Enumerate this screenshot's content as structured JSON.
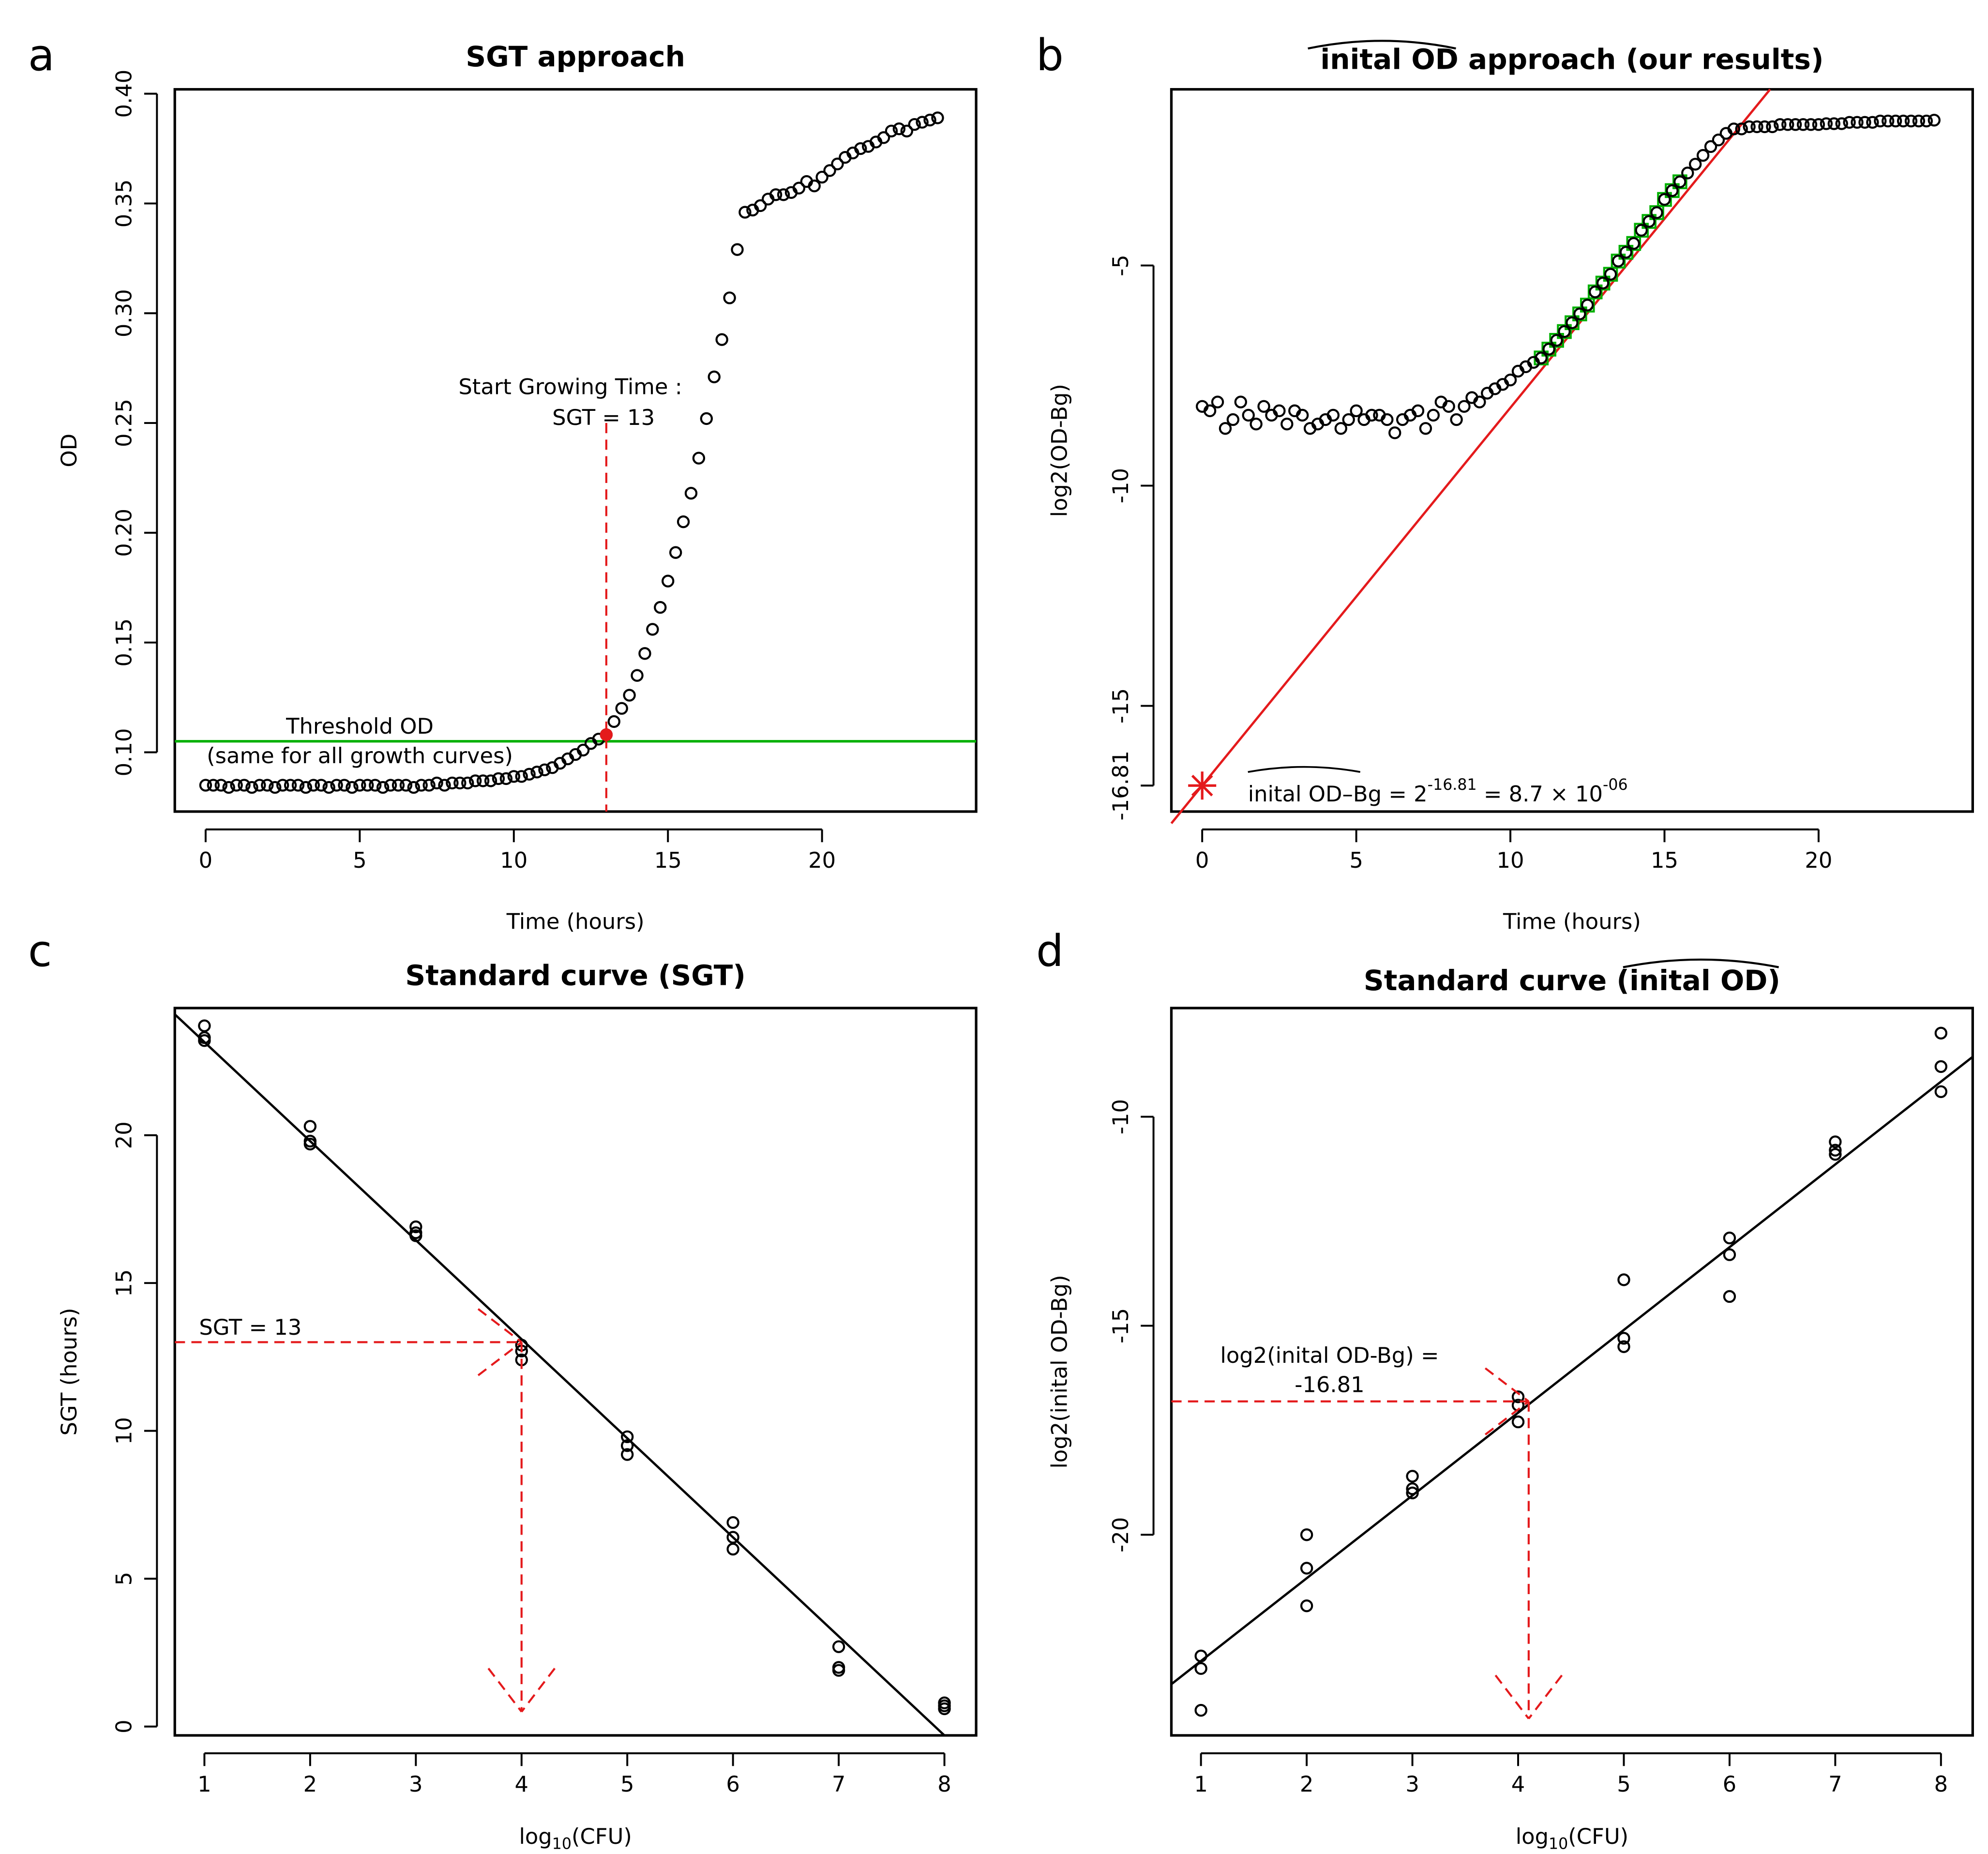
{
  "colors": {
    "axis": "#000000",
    "marker": "#000000",
    "red": "#e41a1c",
    "green": "#00b000",
    "fitline": "#000000"
  },
  "chart_data": [
    {
      "panel": "a",
      "type": "scatter",
      "title": "SGT approach",
      "xlabel": "Time (hours)",
      "ylabel": "OD",
      "xlim": [
        -1,
        25
      ],
      "ylim": [
        0.073,
        0.402
      ],
      "xticks": [
        "0",
        "5",
        "10",
        "15",
        "20"
      ],
      "yticks": [
        "0.10",
        "0.15",
        "0.20",
        "0.25",
        "0.30",
        "0.35",
        "0.40"
      ],
      "threshold_od": 0.105,
      "threshold_label_line1": "Threshold OD",
      "threshold_label_line2": "(same for all growth curves)",
      "sgt_label_line1": "Start Growing Time :",
      "sgt_label_line2": "SGT = 13",
      "sgt_value": 13,
      "sgt_point_od": 0.108,
      "x": [
        0,
        0.25,
        0.5,
        0.75,
        1,
        1.25,
        1.5,
        1.75,
        2,
        2.25,
        2.5,
        2.75,
        3,
        3.25,
        3.5,
        3.75,
        4,
        4.25,
        4.5,
        4.75,
        5,
        5.25,
        5.5,
        5.75,
        6,
        6.25,
        6.5,
        6.75,
        7,
        7.25,
        7.5,
        7.75,
        8,
        8.25,
        8.5,
        8.75,
        9,
        9.25,
        9.5,
        9.75,
        10,
        10.25,
        10.5,
        10.75,
        11,
        11.25,
        11.5,
        11.75,
        12,
        12.25,
        12.5,
        12.75,
        13,
        13.25,
        13.5,
        13.75,
        14,
        14.25,
        14.5,
        14.75,
        15,
        15.25,
        15.5,
        15.75,
        16,
        16.25,
        16.5,
        16.75,
        17,
        17.25,
        17.5,
        17.75,
        18,
        18.25,
        18.5,
        18.75,
        19,
        19.25,
        19.5,
        19.75,
        20,
        20.25,
        20.5,
        20.75,
        21,
        21.25,
        21.5,
        21.75,
        22,
        22.25,
        22.5,
        22.75,
        23,
        23.25,
        23.5,
        23.75
      ],
      "y": [
        0.085,
        0.085,
        0.085,
        0.084,
        0.085,
        0.085,
        0.084,
        0.085,
        0.085,
        0.084,
        0.085,
        0.085,
        0.085,
        0.084,
        0.085,
        0.085,
        0.084,
        0.085,
        0.085,
        0.084,
        0.085,
        0.085,
        0.085,
        0.084,
        0.085,
        0.085,
        0.085,
        0.084,
        0.085,
        0.085,
        0.086,
        0.085,
        0.086,
        0.086,
        0.086,
        0.087,
        0.087,
        0.087,
        0.088,
        0.088,
        0.089,
        0.089,
        0.09,
        0.091,
        0.092,
        0.093,
        0.095,
        0.097,
        0.099,
        0.101,
        0.104,
        0.106,
        0.108,
        0.114,
        0.12,
        0.126,
        0.135,
        0.145,
        0.156,
        0.166,
        0.178,
        0.191,
        0.205,
        0.218,
        0.234,
        0.252,
        0.271,
        0.288,
        0.307,
        0.329,
        0.346,
        0.347,
        0.349,
        0.352,
        0.354,
        0.354,
        0.355,
        0.357,
        0.36,
        0.358,
        0.362,
        0.365,
        0.368,
        0.371,
        0.373,
        0.375,
        0.376,
        0.378,
        0.38,
        0.383,
        0.384,
        0.383,
        0.386,
        0.387,
        0.388,
        0.389
      ]
    },
    {
      "panel": "b",
      "type": "scatter",
      "title": "inital OD approach (our results)",
      "xlabel": "Time (hours)",
      "ylabel": "log2(OD-Bg)",
      "xlim": [
        -1,
        25
      ],
      "ylim": [
        -17.4,
        -1.0
      ],
      "xticks": [
        "0",
        "5",
        "10",
        "15",
        "20"
      ],
      "yticks": [
        "-5",
        "-10",
        "-15",
        "-16.81"
      ],
      "intercept": -16.81,
      "slope": 0.858,
      "fit_window": [
        11,
        15.5
      ],
      "result_label": "inital OD–Bg = 2",
      "result_exponent": "-16.81",
      "result_eq": " = 8.7 × 10",
      "result_exp2": "-06",
      "x": [
        0,
        0.25,
        0.5,
        0.75,
        1,
        1.25,
        1.5,
        1.75,
        2,
        2.25,
        2.5,
        2.75,
        3,
        3.25,
        3.5,
        3.75,
        4,
        4.25,
        4.5,
        4.75,
        5,
        5.25,
        5.5,
        5.75,
        6,
        6.25,
        6.5,
        6.75,
        7,
        7.25,
        7.5,
        7.75,
        8,
        8.25,
        8.5,
        8.75,
        9,
        9.25,
        9.5,
        9.75,
        10,
        10.25,
        10.5,
        10.75,
        11,
        11.25,
        11.5,
        11.75,
        12,
        12.25,
        12.5,
        12.75,
        13,
        13.25,
        13.5,
        13.75,
        14,
        14.25,
        14.5,
        14.75,
        15,
        15.25,
        15.5,
        15.75,
        16,
        16.25,
        16.5,
        16.75,
        17,
        17.25,
        17.5,
        17.75,
        18,
        18.25,
        18.5,
        18.75,
        19,
        19.25,
        19.5,
        19.75,
        20,
        20.25,
        20.5,
        20.75,
        21,
        21.25,
        21.5,
        21.75,
        22,
        22.25,
        22.5,
        22.75,
        23,
        23.25,
        23.5,
        23.75
      ],
      "y": [
        -8.2,
        -8.3,
        -8.1,
        -8.7,
        -8.5,
        -8.1,
        -8.4,
        -8.6,
        -8.2,
        -8.4,
        -8.3,
        -8.6,
        -8.3,
        -8.4,
        -8.7,
        -8.6,
        -8.5,
        -8.4,
        -8.7,
        -8.5,
        -8.3,
        -8.5,
        -8.4,
        -8.4,
        -8.5,
        -8.8,
        -8.5,
        -8.4,
        -8.3,
        -8.7,
        -8.4,
        -8.1,
        -8.2,
        -8.5,
        -8.2,
        -8.0,
        -8.1,
        -7.9,
        -7.8,
        -7.7,
        -7.6,
        -7.4,
        -7.3,
        -7.2,
        -7.1,
        -6.9,
        -6.7,
        -6.5,
        -6.3,
        -6.1,
        -5.9,
        -5.6,
        -5.4,
        -5.2,
        -4.9,
        -4.7,
        -4.5,
        -4.2,
        -4.0,
        -3.8,
        -3.5,
        -3.3,
        -3.1,
        -2.9,
        -2.7,
        -2.5,
        -2.3,
        -2.15,
        -2.0,
        -1.9,
        -1.9,
        -1.85,
        -1.85,
        -1.85,
        -1.85,
        -1.8,
        -1.8,
        -1.8,
        -1.8,
        -1.8,
        -1.8,
        -1.78,
        -1.78,
        -1.78,
        -1.75,
        -1.75,
        -1.75,
        -1.75,
        -1.72,
        -1.72,
        -1.72,
        -1.72,
        -1.72,
        -1.72,
        -1.72,
        -1.7
      ]
    },
    {
      "panel": "c",
      "type": "scatter",
      "title": "Standard curve (SGT)",
      "xlabel": "log10(CFU)",
      "ylabel": "SGT (hours)",
      "xlim": [
        0.72,
        8.3
      ],
      "ylim": [
        -0.3,
        24.3
      ],
      "xticks": [
        "1",
        "2",
        "3",
        "4",
        "5",
        "6",
        "7",
        "8"
      ],
      "yticks": [
        "0",
        "5",
        "10",
        "15",
        "20"
      ],
      "fit_intercept": 26.5,
      "fit_slope": -3.35,
      "sgt_value": 13,
      "sgt_x": 4.0,
      "sgt_label": "SGT = 13",
      "x": [
        1,
        1,
        1,
        2,
        2,
        2,
        3,
        3,
        3,
        4,
        4,
        4,
        5,
        5,
        5,
        6,
        6,
        6,
        7,
        7,
        7,
        8,
        8,
        8
      ],
      "y": [
        23.7,
        23.3,
        23.2,
        20.3,
        19.8,
        19.7,
        16.9,
        16.7,
        16.6,
        12.9,
        12.7,
        12.4,
        9.8,
        9.5,
        9.2,
        6.9,
        6.4,
        6.0,
        2.7,
        2.0,
        1.9,
        0.8,
        0.7,
        0.6
      ]
    },
    {
      "panel": "d",
      "type": "scatter",
      "title": "Standard curve (inital OD)",
      "title_prefix": "Standard curve (",
      "title_hat": "inital OD",
      "title_suffix": ")",
      "xlabel": "log10(CFU)",
      "ylabel": "log2(inital OD-Bg)",
      "xlim": [
        0.72,
        8.3
      ],
      "ylim": [
        -24.8,
        -7.4
      ],
      "xticks": [
        "1",
        "2",
        "3",
        "4",
        "5",
        "6",
        "7",
        "8"
      ],
      "yticks": [
        "-10",
        "-15",
        "-20"
      ],
      "fit_intercept": -25.0,
      "fit_slope": 1.98,
      "value": -16.81,
      "value_x": 4.1,
      "value_label_line1": "log2(inital OD-Bg) =",
      "value_label_line2": "-16.81",
      "x": [
        1,
        1,
        1,
        2,
        2,
        2,
        3,
        3,
        3,
        4,
        4,
        4,
        5,
        5,
        5,
        6,
        6,
        6,
        7,
        7,
        7,
        8,
        8,
        8
      ],
      "y": [
        -22.9,
        -23.2,
        -24.2,
        -20.0,
        -20.8,
        -21.7,
        -18.6,
        -18.9,
        -19.0,
        -16.7,
        -16.9,
        -17.3,
        -13.9,
        -15.3,
        -15.5,
        -12.9,
        -13.3,
        -14.3,
        -10.6,
        -10.8,
        -10.9,
        -8.0,
        -8.8,
        -9.4
      ]
    }
  ],
  "panel_letters": [
    "a",
    "b",
    "c",
    "d"
  ]
}
